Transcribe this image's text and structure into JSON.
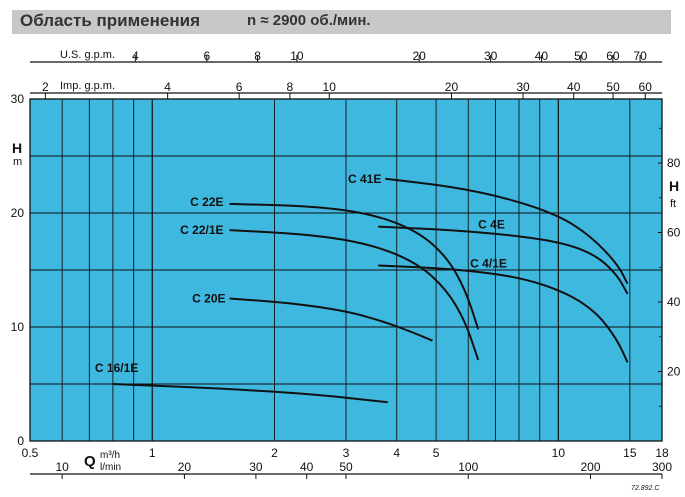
{
  "header": {
    "title": "Область применения",
    "speed": "n ≈ 2900  об./мин."
  },
  "colors": {
    "plot_background": "#3fb8e0",
    "grid": "#111111",
    "curve": "#111111",
    "title_bar": "#c8c8c8"
  },
  "axes": {
    "us_gpm_label": "U.S. g.p.m.",
    "imp_gpm_label": "Imp. g.p.m.",
    "h_left_label": "H",
    "h_left_unit": "m",
    "h_right_label": "H",
    "h_right_unit": "ft",
    "q_label": "Q",
    "q_unit_m3h": "m³/h",
    "q_unit_lmin": "l/min"
  },
  "chart_data": {
    "type": "line",
    "title": "Область применения",
    "x_scale": "log",
    "xlim": [
      0.5,
      18
    ],
    "ylim": [
      0,
      30
    ],
    "grid": true,
    "x_ticks_m3h": [
      {
        "v": 0.5,
        "label": "0.5"
      },
      {
        "v": 1,
        "label": "1"
      },
      {
        "v": 2,
        "label": "2"
      },
      {
        "v": 3,
        "label": "3"
      },
      {
        "v": 4,
        "label": "4"
      },
      {
        "v": 5,
        "label": "5"
      },
      {
        "v": 10,
        "label": "10"
      },
      {
        "v": 15,
        "label": "15"
      },
      {
        "v": 18,
        "label": "18"
      }
    ],
    "x_ticks_lmin": [
      {
        "v": 10,
        "label": "10"
      },
      {
        "v": 20,
        "label": "20"
      },
      {
        "v": 30,
        "label": "30"
      },
      {
        "v": 40,
        "label": "40"
      },
      {
        "v": 50,
        "label": "50"
      },
      {
        "v": 100,
        "label": "100"
      },
      {
        "v": 200,
        "label": "200"
      },
      {
        "v": 300,
        "label": "300"
      }
    ],
    "x_ticks_us_gpm": [
      {
        "v": 4,
        "label": "4"
      },
      {
        "v": 6,
        "label": "6"
      },
      {
        "v": 8,
        "label": "8"
      },
      {
        "v": 10,
        "label": "10"
      },
      {
        "v": 20,
        "label": "20"
      },
      {
        "v": 30,
        "label": "30"
      },
      {
        "v": 40,
        "label": "40"
      },
      {
        "v": 50,
        "label": "50"
      },
      {
        "v": 60,
        "label": "60"
      },
      {
        "v": 70,
        "label": "70"
      }
    ],
    "x_ticks_imp_gpm": [
      {
        "v": 2,
        "label": "2"
      },
      {
        "v": 4,
        "label": "4"
      },
      {
        "v": 6,
        "label": "6"
      },
      {
        "v": 8,
        "label": "8"
      },
      {
        "v": 10,
        "label": "10"
      },
      {
        "v": 20,
        "label": "20"
      },
      {
        "v": 30,
        "label": "30"
      },
      {
        "v": 40,
        "label": "40"
      },
      {
        "v": 50,
        "label": "50"
      },
      {
        "v": 60,
        "label": "60"
      }
    ],
    "y_ticks_m": [
      {
        "v": 0,
        "label": "0"
      },
      {
        "v": 10,
        "label": "10"
      },
      {
        "v": 20,
        "label": "20"
      },
      {
        "v": 30,
        "label": "30"
      }
    ],
    "y_ticks_ft": [
      {
        "v": 20,
        "label": "20"
      },
      {
        "v": 40,
        "label": "40"
      },
      {
        "v": 60,
        "label": "60"
      },
      {
        "v": 80,
        "label": "80"
      }
    ],
    "series": [
      {
        "name": "C 16/1E",
        "x": [
          0.8,
          1.5,
          2.5,
          3.8
        ],
        "y": [
          5.0,
          4.6,
          4.1,
          3.4
        ]
      },
      {
        "name": "C 20E",
        "x": [
          1.55,
          2.2,
          3.0,
          3.7,
          4.4,
          4.9
        ],
        "y": [
          12.5,
          12.1,
          11.4,
          10.5,
          9.5,
          8.8
        ]
      },
      {
        "name": "C 22/1E",
        "x": [
          1.55,
          2.5,
          3.5,
          4.5,
          5.3,
          5.9,
          6.35
        ],
        "y": [
          18.5,
          18.1,
          17.2,
          15.6,
          13.3,
          10.5,
          7.1
        ]
      },
      {
        "name": "C 22E",
        "x": [
          1.55,
          2.5,
          3.5,
          4.5,
          5.3,
          5.9,
          6.35
        ],
        "y": [
          20.8,
          20.6,
          19.9,
          18.4,
          16.2,
          13.3,
          9.8
        ]
      },
      {
        "name": "C 41E",
        "x": [
          3.75,
          5.5,
          7.5,
          10.0,
          12.0,
          14.0,
          14.8
        ],
        "y": [
          23.0,
          22.3,
          21.3,
          19.8,
          18.0,
          15.5,
          13.8
        ]
      },
      {
        "name": "C 4E",
        "x": [
          3.6,
          5.5,
          8.0,
          10.5,
          12.5,
          14.0,
          14.8
        ],
        "y": [
          18.8,
          18.5,
          18.0,
          17.3,
          16.2,
          14.5,
          12.9
        ]
      },
      {
        "name": "C 4/1E",
        "x": [
          3.6,
          5.5,
          8.0,
          10.5,
          12.5,
          14.0,
          14.8
        ],
        "y": [
          15.4,
          15.1,
          14.4,
          13.0,
          11.2,
          8.8,
          6.9
        ]
      }
    ]
  },
  "footnote": "72.892.C"
}
